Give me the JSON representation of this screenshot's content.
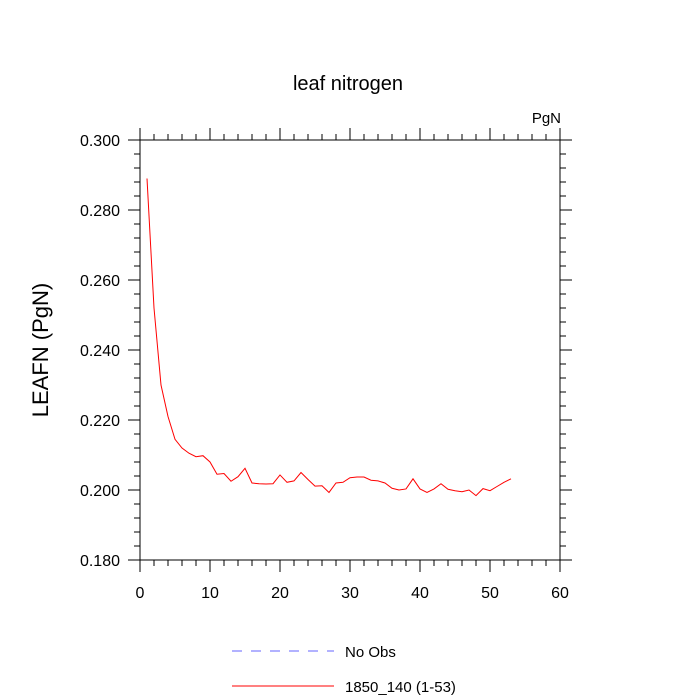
{
  "chart_data": {
    "type": "line",
    "title": "leaf nitrogen",
    "units": "PgN",
    "ylabel": "LEAFN  (PgN)",
    "xlabel": "",
    "xlim": [
      0,
      60
    ],
    "ylim": [
      0.18,
      0.3
    ],
    "x_ticks": [
      0,
      10,
      20,
      30,
      40,
      50,
      60
    ],
    "y_ticks": [
      0.18,
      0.2,
      0.22,
      0.24,
      0.26,
      0.28,
      0.3
    ],
    "x_tick_labels": [
      "0",
      "10",
      "20",
      "30",
      "40",
      "50",
      "60"
    ],
    "y_tick_labels": [
      "0.180",
      "0.200",
      "0.220",
      "0.240",
      "0.260",
      "0.280",
      "0.300"
    ],
    "grid": false,
    "legend_position": "bottom-center",
    "series": [
      {
        "name": "No Obs",
        "color": "#6666ff",
        "dash": true,
        "x": [],
        "y": []
      },
      {
        "name": "1850_140 (1-53)",
        "color": "#ff0000",
        "dash": false,
        "x": [
          1,
          2,
          3,
          4,
          5,
          6,
          7,
          8,
          9,
          10,
          11,
          12,
          13,
          14,
          15,
          16,
          17,
          18,
          19,
          20,
          21,
          22,
          23,
          24,
          25,
          26,
          27,
          28,
          29,
          30,
          31,
          32,
          33,
          34,
          35,
          36,
          37,
          38,
          39,
          40,
          41,
          42,
          43,
          44,
          45,
          46,
          47,
          48,
          49,
          50,
          51,
          52,
          53
        ],
        "y": [
          0.289,
          0.252,
          0.23,
          0.221,
          0.2145,
          0.212,
          0.2105,
          0.2095,
          0.2098,
          0.208,
          0.2045,
          0.2047,
          0.2025,
          0.2038,
          0.2062,
          0.202,
          0.2018,
          0.2017,
          0.2018,
          0.2043,
          0.2022,
          0.2026,
          0.205,
          0.203,
          0.2011,
          0.2012,
          0.1993,
          0.202,
          0.2022,
          0.2035,
          0.2037,
          0.2037,
          0.2028,
          0.2026,
          0.202,
          0.2005,
          0.2,
          0.2003,
          0.2032,
          0.2003,
          0.1993,
          0.2003,
          0.2018,
          0.2002,
          0.1998,
          0.1995,
          0.2,
          0.1984,
          0.2004,
          0.1998,
          0.201,
          0.2022,
          0.2032
        ]
      }
    ]
  }
}
